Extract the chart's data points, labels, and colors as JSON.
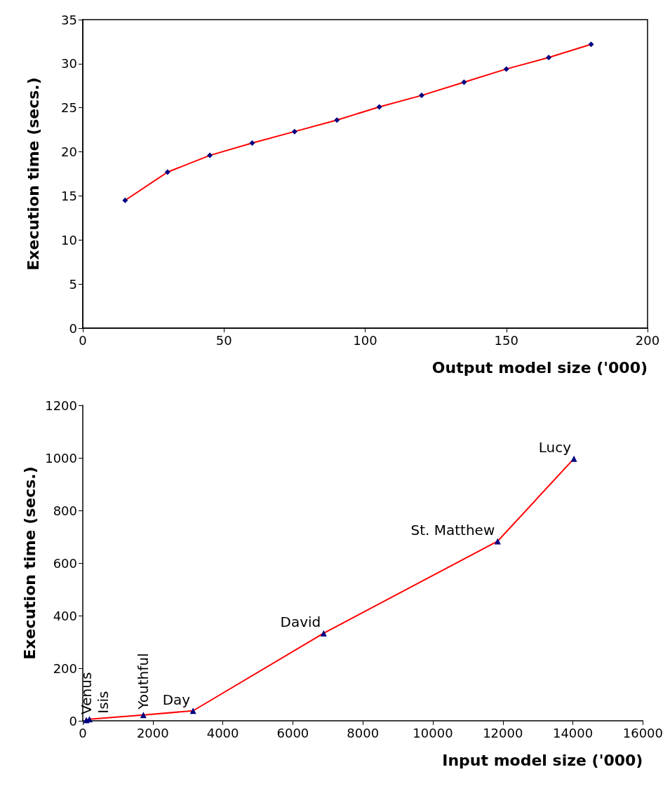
{
  "chart_data": [
    {
      "type": "line",
      "xlabel": "Output model size ('000)",
      "ylabel": "Execution time (secs.)",
      "x": [
        15,
        30,
        45,
        60,
        75,
        90,
        105,
        120,
        135,
        150,
        165,
        180
      ],
      "series": [
        {
          "color": "#ff0000",
          "colors": [
            "#000080",
            "#000080",
            "#000080",
            "#000080",
            "#000080",
            "#000080",
            "#000080",
            "#000080",
            "#000080",
            "#000080",
            "#000080",
            "#000080"
          ],
          "values": [
            14.5,
            17.7,
            19.6,
            21.0,
            22.3,
            23.6,
            25.1,
            26.4,
            27.9,
            29.4,
            30.7,
            32.2
          ]
        }
      ],
      "xlim": [
        0,
        200
      ],
      "xticks": [
        0,
        50,
        100,
        150,
        200
      ],
      "ylim": [
        0,
        35
      ],
      "yticks": [
        0,
        5,
        10,
        15,
        20,
        25,
        30,
        35
      ],
      "marker": "diamond",
      "grid": false
    },
    {
      "type": "line",
      "xlabel": "Input model size ('000)",
      "ylabel": "Execution time (secs.)",
      "x": [
        100,
        190,
        1730,
        3150,
        6880,
        11850,
        14030
      ],
      "series": [
        {
          "color": "#ff0000",
          "colors": [
            "#000080",
            "#000080",
            "#000080",
            "#000080",
            "#000080",
            "#000080",
            "#000080"
          ],
          "values": [
            3,
            6,
            22,
            38,
            333,
            683,
            997
          ]
        }
      ],
      "xlim": [
        0,
        16000
      ],
      "xticks": [
        0,
        2000,
        4000,
        6000,
        8000,
        10000,
        12000,
        14000,
        16000
      ],
      "ylim": [
        0,
        1200
      ],
      "yticks": [
        0,
        200,
        400,
        600,
        800,
        1000,
        1200
      ],
      "marker": "triangle",
      "grid": false,
      "annotations": [
        {
          "text": "Venus",
          "x": 100,
          "y": 3
        },
        {
          "text": "Isis",
          "x": 190,
          "y": 6
        },
        {
          "text": "Youthful",
          "x": 1730,
          "y": 22
        },
        {
          "text": "Day",
          "x": 3150,
          "y": 38
        },
        {
          "text": "David",
          "x": 6880,
          "y": 333
        },
        {
          "text": "St. Matthew",
          "x": 11850,
          "y": 683
        },
        {
          "text": "Lucy",
          "x": 14030,
          "y": 997
        }
      ]
    }
  ]
}
